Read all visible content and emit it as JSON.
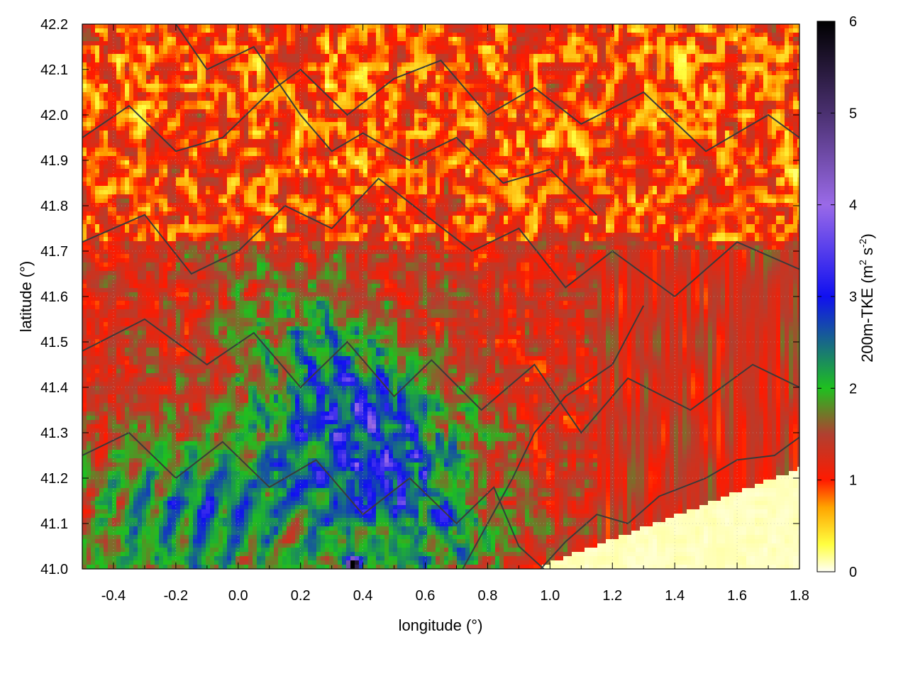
{
  "chart_data": {
    "type": "heatmap",
    "title": "",
    "xlabel": "longitude (°)",
    "ylabel": "latitude (°)",
    "colorbar_label": "200m-TKE (m² s⁻²)",
    "colorbar_parts": {
      "main": "200m-TKE (m",
      "sup1": "2",
      "mid": " s",
      "sup2": "-2",
      "end": ")"
    },
    "xlim": [
      -0.5,
      1.8
    ],
    "ylim": [
      41.0,
      42.2
    ],
    "zlim": [
      0,
      6
    ],
    "x_ticks": [
      "-0.4",
      "-0.2",
      "0.0",
      "0.2",
      "0.4",
      "0.6",
      "0.8",
      "1.0",
      "1.2",
      "1.4",
      "1.6",
      "1.8"
    ],
    "y_ticks": [
      "41.0",
      "41.1",
      "41.2",
      "41.3",
      "41.4",
      "41.5",
      "41.6",
      "41.7",
      "41.8",
      "41.9",
      "42.0",
      "42.1",
      "42.2"
    ],
    "colorbar_ticks": [
      "0",
      "1",
      "2",
      "3",
      "4",
      "5",
      "6"
    ],
    "colormap": [
      {
        "v": 0.0,
        "color": "#fffff5"
      },
      {
        "v": 0.3,
        "color": "#ffff40"
      },
      {
        "v": 0.7,
        "color": "#ffa500"
      },
      {
        "v": 1.0,
        "color": "#ff1a00"
      },
      {
        "v": 1.5,
        "color": "#b04030"
      },
      {
        "v": 2.0,
        "color": "#1fc01f"
      },
      {
        "v": 3.0,
        "color": "#1010f0"
      },
      {
        "v": 4.0,
        "color": "#9a6ae8"
      },
      {
        "v": 5.0,
        "color": "#4a3070"
      },
      {
        "v": 6.0,
        "color": "#000000"
      }
    ],
    "regions": [
      {
        "name": "northern plateau (yellow/orange cells)",
        "tke_range": [
          0.2,
          1.2
        ]
      },
      {
        "name": "central valley streaks (green/blue)",
        "tke_range": [
          1.5,
          4.0
        ]
      },
      {
        "name": "south-east low-TKE area",
        "tke_range": [
          0.0,
          0.3
        ]
      }
    ],
    "contours": "terrain elevation (dark grey lines)",
    "grid": true
  },
  "colors": {
    "contour": "#3a3a3a",
    "grid": "#b0b0b0",
    "frame": "#000000"
  }
}
